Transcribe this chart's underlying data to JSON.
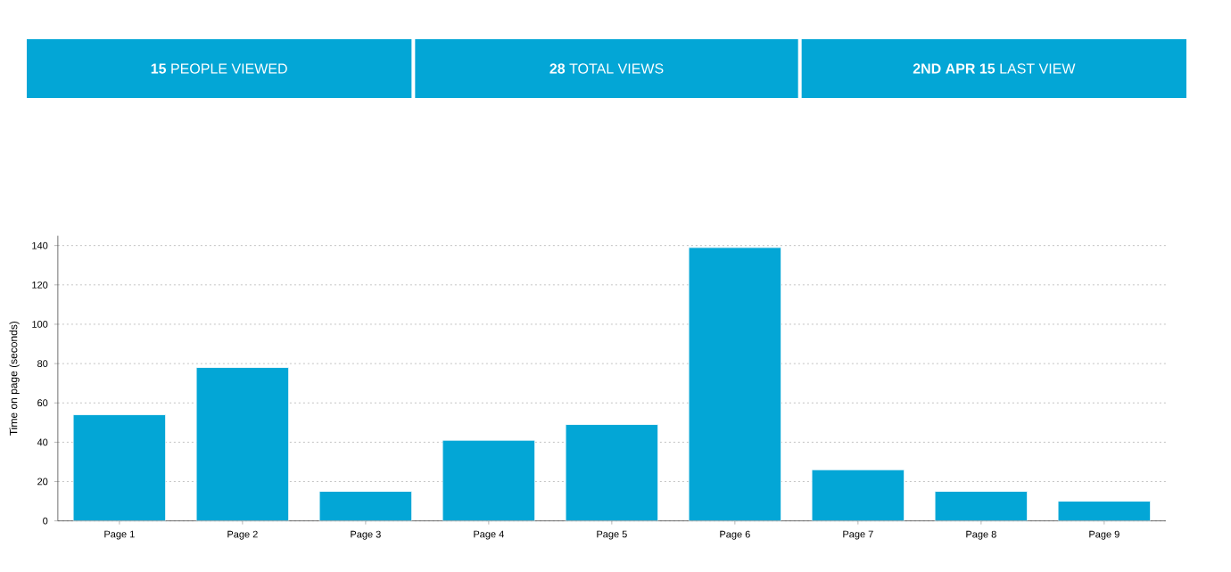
{
  "chart_data": {
    "type": "bar",
    "annotations": [
      "**15** PEOPLE VIEWED",
      "**28** TOTAL VIEWS",
      "**2ND APR 15** LAST VIEW"
    ],
    "ylabel": "Time on page (seconds)",
    "categories": [
      "Page 1",
      "Page 2",
      "Page 3",
      "Page 4",
      "Page 5",
      "Page 6",
      "Page 7",
      "Page 8",
      "Page 9"
    ],
    "values": [
      54,
      78,
      15,
      41,
      49,
      139,
      26,
      15,
      10
    ],
    "color": "#03a6d6",
    "ylim": [
      0,
      145
    ],
    "yticks": [
      0,
      20,
      40,
      60,
      80,
      100,
      120,
      140
    ],
    "grid": "y"
  }
}
